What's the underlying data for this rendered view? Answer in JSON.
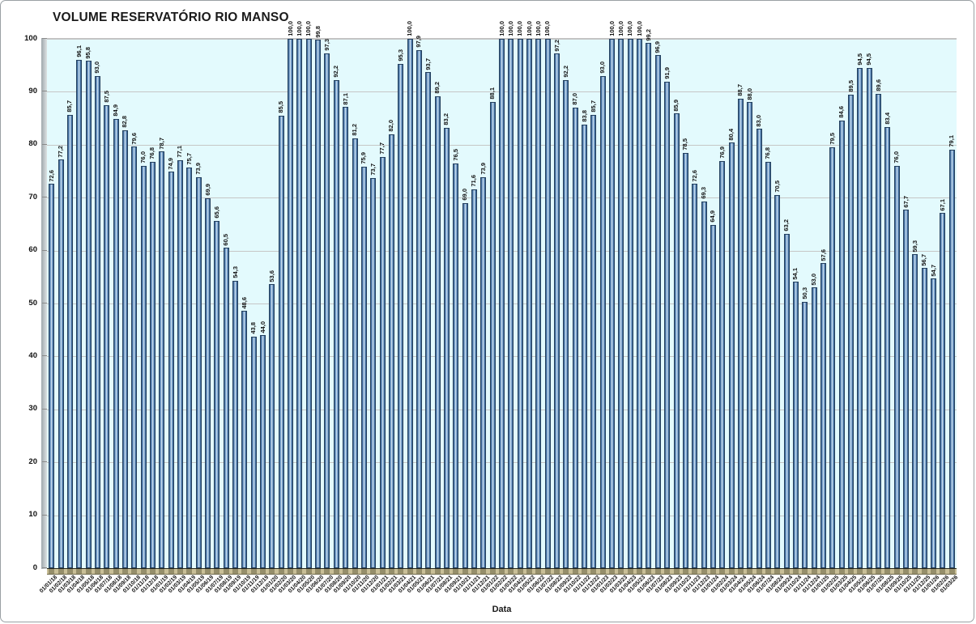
{
  "chart_data": {
    "type": "bar",
    "title": "VOLUME RESERVATÓRIO RIO MANSO",
    "xlabel": "Data",
    "ylabel": "",
    "ylim": [
      0,
      100
    ],
    "ytick_step": 10,
    "grid": true,
    "legend_position": "none",
    "value_label_format": "decimal-comma-1",
    "colors": {
      "bar_fill_mid": "#5b86bd",
      "bar_fill_dark": "#35597f",
      "bar_fill_highlight": "#dcebf6",
      "bar_outline": "#24405e",
      "plot_background": "#e3fafd",
      "gridline": "#c6c6c6",
      "floor": "#c9bf97",
      "text": "#111111"
    },
    "categories": [
      "01/01/18",
      "01/02/18",
      "01/03/18",
      "01/04/18",
      "01/05/18",
      "01/06/18",
      "01/07/18",
      "01/08/18",
      "01/09/18",
      "01/10/18",
      "01/11/18",
      "01/12/18",
      "01/01/19",
      "01/02/19",
      "01/03/19",
      "01/04/19",
      "01/05/19",
      "01/06/19",
      "01/07/19",
      "01/08/19",
      "01/09/19",
      "01/10/19",
      "01/11/19",
      "01/12/19",
      "01/01/20",
      "01/02/20",
      "01/03/20",
      "01/04/20",
      "01/05/20",
      "01/06/20",
      "01/07/20",
      "01/08/20",
      "01/09/20",
      "01/10/20",
      "01/11/20",
      "01/12/20",
      "01/01/21",
      "01/02/21",
      "01/03/21",
      "01/04/21",
      "01/05/21",
      "01/06/21",
      "01/07/21",
      "01/08/21",
      "01/09/21",
      "01/10/21",
      "01/11/21",
      "01/12/21",
      "01/01/22",
      "01/02/22",
      "01/03/22",
      "01/04/22",
      "01/05/22",
      "01/06/22",
      "01/07/22",
      "01/08/22",
      "01/09/22",
      "01/10/22",
      "01/11/22",
      "01/12/22",
      "01/01/23",
      "01/02/23",
      "01/03/23",
      "01/04/23",
      "01/05/23",
      "01/06/23",
      "01/07/23",
      "01/08/23",
      "01/09/23",
      "01/10/23",
      "01/11/23",
      "01/12/23",
      "01/01/24",
      "01/02/24",
      "01/03/24",
      "01/04/24",
      "01/05/24",
      "01/06/24",
      "01/07/24",
      "01/08/24",
      "01/09/24",
      "01/10/24",
      "01/11/24",
      "01/12/24",
      "01/01/25",
      "01/02/25",
      "01/03/25",
      "01/04/25",
      "01/05/25",
      "01/06/25",
      "01/07/25",
      "01/08/25",
      "01/09/25",
      "01/10/25",
      "01/11/25",
      "01/12/25",
      "01/01/26",
      "01/02/26",
      "01/03/26"
    ],
    "values": [
      72.6,
      77.2,
      85.7,
      96.1,
      95.8,
      93.0,
      87.5,
      84.9,
      82.8,
      79.6,
      76.0,
      76.8,
      78.7,
      74.9,
      77.1,
      75.7,
      73.9,
      69.9,
      65.6,
      60.5,
      54.3,
      48.6,
      43.8,
      44.0,
      53.6,
      85.5,
      100.0,
      100.0,
      100.0,
      99.8,
      97.3,
      92.2,
      87.1,
      81.2,
      75.9,
      73.7,
      77.7,
      82.0,
      95.3,
      100.0,
      97.9,
      93.7,
      89.2,
      83.2,
      76.5,
      69.0,
      71.6,
      73.9,
      88.1,
      100.0,
      100.0,
      100.0,
      100.0,
      100.0,
      100.0,
      97.2,
      92.2,
      87.0,
      83.8,
      85.7,
      93.0,
      100.0,
      100.0,
      100.0,
      100.0,
      99.2,
      96.9,
      91.9,
      85.9,
      78.5,
      72.6,
      69.3,
      64.9,
      76.9,
      80.4,
      88.7,
      88.0,
      83.0,
      76.8,
      70.5,
      63.2,
      54.1,
      50.3,
      53.0,
      57.6,
      79.5,
      84.6,
      89.5,
      94.5,
      94.5,
      89.6,
      83.4,
      76.0,
      67.7,
      59.3,
      56.7,
      54.7,
      67.1,
      79.1
    ]
  }
}
